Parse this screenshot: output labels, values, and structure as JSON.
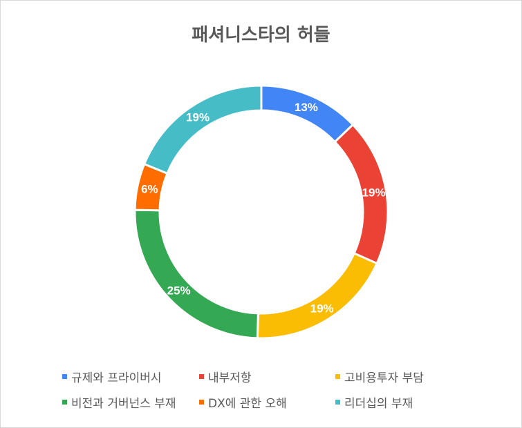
{
  "chart_data": {
    "type": "pie",
    "donut": true,
    "title": "패셔니스타의 허들",
    "categories": [
      "규제와 프라이버시",
      "내부저항",
      "고비용투자 부담",
      "비전과 거버넌스 부재",
      "DX에 관한 오해",
      "리더십의 부재"
    ],
    "values": [
      13,
      19,
      19,
      25,
      6,
      19
    ],
    "labels": [
      "13%",
      "19%",
      "19%",
      "25%",
      "6%",
      "19%"
    ],
    "colors": [
      "#4285f4",
      "#ea4335",
      "#fbbc04",
      "#34a853",
      "#ff6d01",
      "#46bdc6"
    ],
    "legend_position": "bottom"
  }
}
